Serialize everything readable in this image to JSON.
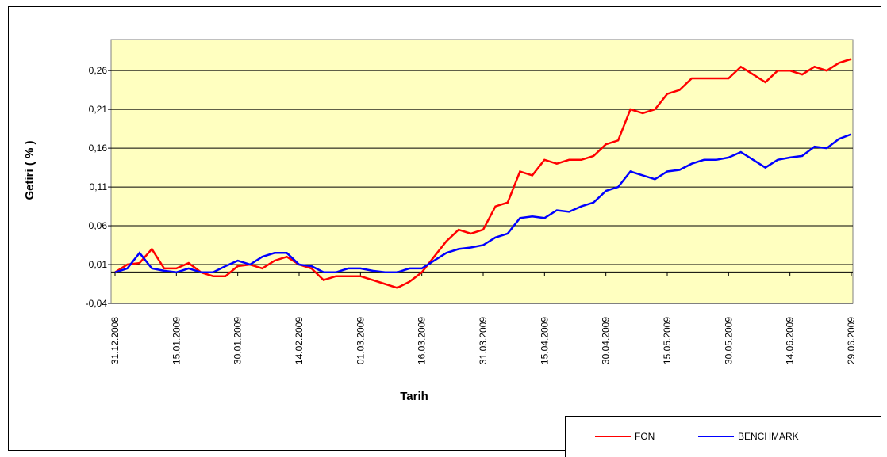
{
  "chart_data": {
    "type": "line",
    "xlabel": "Tarih",
    "ylabel": "Getiri ( % )",
    "categories": [
      "31.12.2008",
      null,
      null,
      null,
      null,
      "15.01.2009",
      null,
      null,
      null,
      null,
      "30.01.2009",
      null,
      null,
      null,
      null,
      "14.02.2009",
      null,
      null,
      null,
      null,
      "01.03.2009",
      null,
      null,
      null,
      null,
      "16.03.2009",
      null,
      null,
      null,
      null,
      "31.03.2009",
      null,
      null,
      null,
      null,
      "15.04.2009",
      null,
      null,
      null,
      null,
      "30.04.2009",
      null,
      null,
      null,
      null,
      "15.05.2009",
      null,
      null,
      null,
      null,
      "30.05.2009",
      null,
      null,
      null,
      null,
      "14.06.2009",
      null,
      null,
      null,
      null,
      "29.06.2009"
    ],
    "series": [
      {
        "name": "FON",
        "color": "#ff0000",
        "values": [
          0.0,
          0.01,
          0.012,
          0.03,
          0.005,
          0.005,
          0.012,
          0.0,
          -0.005,
          -0.005,
          0.008,
          0.01,
          0.005,
          0.015,
          0.02,
          0.01,
          0.005,
          -0.01,
          -0.005,
          -0.005,
          -0.005,
          -0.01,
          -0.015,
          -0.02,
          -0.012,
          0.0,
          0.02,
          0.04,
          0.055,
          0.05,
          0.055,
          0.085,
          0.09,
          0.13,
          0.125,
          0.145,
          0.14,
          0.145,
          0.145,
          0.15,
          0.165,
          0.17,
          0.21,
          0.205,
          0.21,
          0.23,
          0.235,
          0.25,
          0.25,
          0.25,
          0.25,
          0.265,
          0.255,
          0.245,
          0.26,
          0.26,
          0.255,
          0.265,
          0.26,
          0.27,
          0.275
        ]
      },
      {
        "name": "BENCHMARK",
        "color": "#0000ff",
        "values": [
          0.0,
          0.005,
          0.025,
          0.005,
          0.002,
          0.0,
          0.005,
          0.0,
          0.0,
          0.008,
          0.015,
          0.01,
          0.02,
          0.025,
          0.025,
          0.01,
          0.008,
          0.0,
          0.0,
          0.005,
          0.005,
          0.002,
          0.0,
          0.0,
          0.005,
          0.005,
          0.015,
          0.025,
          0.03,
          0.032,
          0.035,
          0.045,
          0.05,
          0.07,
          0.072,
          0.07,
          0.08,
          0.078,
          0.085,
          0.09,
          0.105,
          0.11,
          0.13,
          0.125,
          0.12,
          0.13,
          0.132,
          0.14,
          0.145,
          0.145,
          0.148,
          0.155,
          0.145,
          0.135,
          0.145,
          0.148,
          0.15,
          0.162,
          0.16,
          0.172,
          0.178
        ]
      }
    ],
    "ylim": [
      -0.04,
      0.3
    ],
    "yticks": [
      {
        "value": -0.04,
        "label": "-0,04"
      },
      {
        "value": 0.01,
        "label": "0,01"
      },
      {
        "value": 0.06,
        "label": "0,06"
      },
      {
        "value": 0.11,
        "label": "0,11"
      },
      {
        "value": 0.16,
        "label": "0,16"
      },
      {
        "value": 0.21,
        "label": "0,21"
      },
      {
        "value": 0.26,
        "label": "0,26"
      }
    ],
    "grid": true,
    "plot_background": "#ffffc0"
  }
}
